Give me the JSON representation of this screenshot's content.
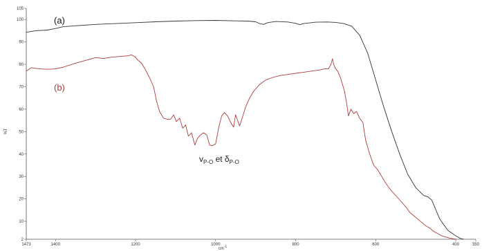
{
  "chart_data": {
    "type": "line",
    "xlabel": "cm",
    "xlabel_sup": "-1",
    "ylabel": "%T",
    "xlim": [
      1473,
      350
    ],
    "ylim": [
      2,
      105
    ],
    "x_ticks": [
      1473,
      1400,
      1200,
      1000,
      800,
      600,
      400,
      350
    ],
    "y_ticks": [
      2,
      10,
      20,
      30,
      40,
      50,
      60,
      70,
      80,
      90,
      100,
      105
    ],
    "grid": false,
    "series": [
      {
        "name": "(a)",
        "color": "#333333",
        "points": [
          [
            1473,
            94.3
          ],
          [
            1450,
            95
          ],
          [
            1420,
            95.3
          ],
          [
            1400,
            96
          ],
          [
            1380,
            96.8
          ],
          [
            1350,
            97.2
          ],
          [
            1300,
            97.8
          ],
          [
            1250,
            98.2
          ],
          [
            1200,
            98.6
          ],
          [
            1150,
            99
          ],
          [
            1100,
            99.3
          ],
          [
            1050,
            99.5
          ],
          [
            1000,
            99.6
          ],
          [
            950,
            99.4
          ],
          [
            920,
            99.3
          ],
          [
            900,
            99
          ],
          [
            890,
            98.2
          ],
          [
            880,
            97.8
          ],
          [
            870,
            98.6
          ],
          [
            850,
            99.1
          ],
          [
            820,
            98.9
          ],
          [
            800,
            98.3
          ],
          [
            790,
            97.7
          ],
          [
            780,
            98.2
          ],
          [
            750,
            98.8
          ],
          [
            720,
            98.9
          ],
          [
            700,
            98.7
          ],
          [
            680,
            98.2
          ],
          [
            660,
            97
          ],
          [
            640,
            93
          ],
          [
            620,
            85
          ],
          [
            600,
            73
          ],
          [
            580,
            61
          ],
          [
            560,
            50
          ],
          [
            540,
            40
          ],
          [
            520,
            31
          ],
          [
            500,
            25
          ],
          [
            480,
            21.5
          ],
          [
            470,
            21
          ],
          [
            460,
            19.5
          ],
          [
            440,
            11
          ],
          [
            420,
            6
          ],
          [
            400,
            3.5
          ],
          [
            390,
            2.5
          ],
          [
            380,
            2
          ]
        ]
      },
      {
        "name": "(b)",
        "color": "#b03a3a",
        "points": [
          [
            1473,
            77
          ],
          [
            1460,
            78.5
          ],
          [
            1440,
            78
          ],
          [
            1420,
            77.8
          ],
          [
            1400,
            78
          ],
          [
            1380,
            78.8
          ],
          [
            1350,
            80.5
          ],
          [
            1320,
            82
          ],
          [
            1300,
            83
          ],
          [
            1280,
            82.6
          ],
          [
            1260,
            83.2
          ],
          [
            1240,
            83.5
          ],
          [
            1220,
            83.8
          ],
          [
            1210,
            84.2
          ],
          [
            1200,
            83.2
          ],
          [
            1195,
            82
          ],
          [
            1185,
            80.5
          ],
          [
            1175,
            77.5
          ],
          [
            1165,
            74
          ],
          [
            1155,
            70
          ],
          [
            1148,
            64
          ],
          [
            1140,
            59
          ],
          [
            1130,
            56
          ],
          [
            1120,
            55.5
          ],
          [
            1112,
            55.6
          ],
          [
            1105,
            57.5
          ],
          [
            1098,
            54.5
          ],
          [
            1090,
            56
          ],
          [
            1082,
            51.5
          ],
          [
            1075,
            53
          ],
          [
            1068,
            48
          ],
          [
            1060,
            49.5
          ],
          [
            1052,
            44
          ],
          [
            1045,
            47
          ],
          [
            1038,
            48.5
          ],
          [
            1030,
            49.5
          ],
          [
            1022,
            48.5
          ],
          [
            1015,
            44
          ],
          [
            1008,
            43.8
          ],
          [
            1000,
            44.5
          ],
          [
            992,
            52
          ],
          [
            985,
            57
          ],
          [
            978,
            58.5
          ],
          [
            970,
            57
          ],
          [
            962,
            54
          ],
          [
            955,
            52
          ],
          [
            950,
            57.5
          ],
          [
            945,
            55
          ],
          [
            940,
            52.5
          ],
          [
            932,
            57
          ],
          [
            925,
            61
          ],
          [
            915,
            65
          ],
          [
            905,
            68
          ],
          [
            890,
            71
          ],
          [
            875,
            73
          ],
          [
            860,
            74
          ],
          [
            840,
            75
          ],
          [
            820,
            75.5
          ],
          [
            800,
            76
          ],
          [
            780,
            76.5
          ],
          [
            760,
            77
          ],
          [
            740,
            77.5
          ],
          [
            728,
            78
          ],
          [
            718,
            78
          ],
          [
            712,
            80
          ],
          [
            708,
            82.5
          ],
          [
            705,
            80
          ],
          [
            700,
            78
          ],
          [
            695,
            77
          ],
          [
            688,
            74
          ],
          [
            678,
            68
          ],
          [
            672,
            62
          ],
          [
            668,
            57
          ],
          [
            662,
            60
          ],
          [
            655,
            58
          ],
          [
            648,
            59
          ],
          [
            640,
            56
          ],
          [
            632,
            54
          ],
          [
            625,
            46
          ],
          [
            615,
            40
          ],
          [
            605,
            35
          ],
          [
            595,
            33
          ],
          [
            585,
            30
          ],
          [
            575,
            27
          ],
          [
            565,
            24.5
          ],
          [
            555,
            22.5
          ],
          [
            545,
            20.5
          ],
          [
            535,
            18.5
          ],
          [
            525,
            16.5
          ],
          [
            515,
            14
          ],
          [
            505,
            12.5
          ],
          [
            495,
            11
          ],
          [
            485,
            9.5
          ],
          [
            475,
            8
          ],
          [
            465,
            7
          ],
          [
            455,
            5.5
          ],
          [
            445,
            4.5
          ],
          [
            435,
            3.5
          ],
          [
            425,
            3
          ],
          [
            415,
            2.5
          ],
          [
            400,
            2
          ]
        ]
      }
    ],
    "annotation": {
      "main1": "v",
      "sub1": "P-O",
      "mid": " et δ",
      "sub2": "P-O",
      "at": [
        985,
        33.5
      ]
    }
  }
}
